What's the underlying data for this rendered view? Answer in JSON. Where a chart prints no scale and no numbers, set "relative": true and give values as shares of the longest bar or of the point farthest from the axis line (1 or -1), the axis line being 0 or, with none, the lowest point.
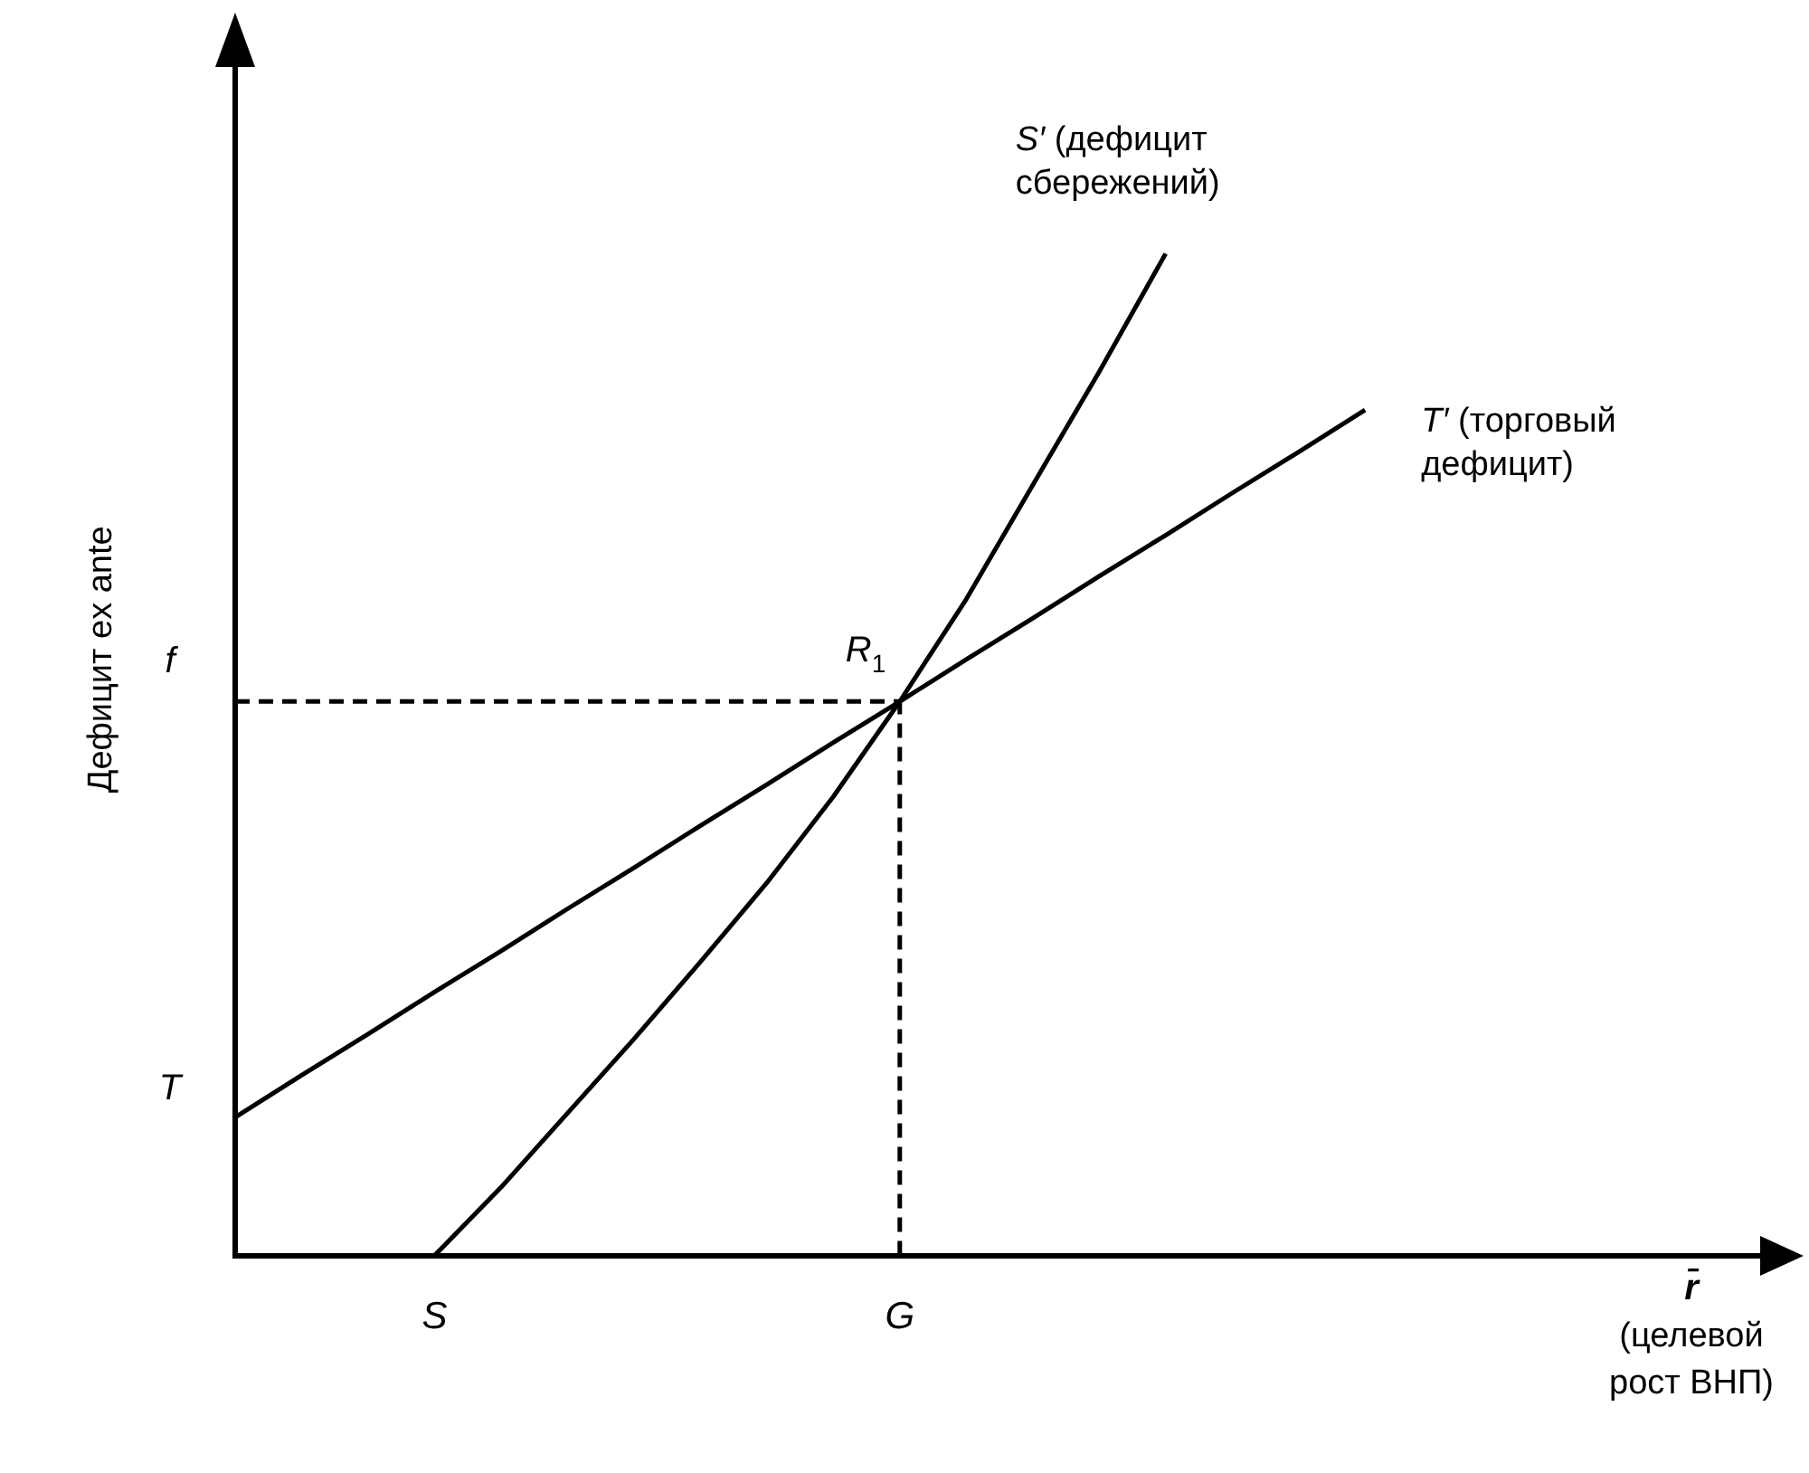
{
  "chart_data": {
    "type": "line",
    "relative": true,
    "xlabel": "r̄\n(целевой\nрост ВНП)",
    "ylabel": "Дефицит ex ante",
    "legend": false,
    "marker": "none",
    "categories": [
      null,
      null,
      null,
      "S",
      null,
      null,
      null,
      null,
      null,
      null,
      "G",
      null,
      null,
      null,
      null,
      null,
      null,
      null,
      null,
      null,
      null,
      null,
      null,
      null
    ],
    "series": [
      {
        "name": "S′ (дефицит сбережений)",
        "color": "#000000",
        "values": [
          null,
          null,
          null,
          0,
          0.068,
          0.142,
          0.216,
          0.293,
          0.372,
          0.458,
          0.553,
          0.655,
          0.769,
          0.882,
          1,
          null,
          null,
          null,
          null,
          null,
          null,
          null,
          null,
          null
        ]
      },
      {
        "name": "T′ (торговый дефицит)",
        "color": "#000000",
        "values": [
          0.138,
          0.18,
          0.221,
          0.263,
          0.304,
          0.346,
          0.387,
          0.429,
          0.47,
          0.512,
          0.553,
          0.595,
          0.636,
          0.678,
          0.719,
          0.761,
          0.802,
          0.844,
          null,
          null,
          null,
          null,
          null,
          null
        ]
      }
    ],
    "ref_lines": [
      {
        "axis": "y",
        "value": 0.553,
        "label": "f",
        "color": "#000000",
        "line_style": "dashed"
      },
      {
        "axis": "x",
        "value": "G",
        "color": "#000000",
        "line_style": "dashed"
      }
    ],
    "annotations": [
      {
        "text": "R$_{1}$",
        "x": "G",
        "y": 0.553
      },
      "T"
    ]
  }
}
